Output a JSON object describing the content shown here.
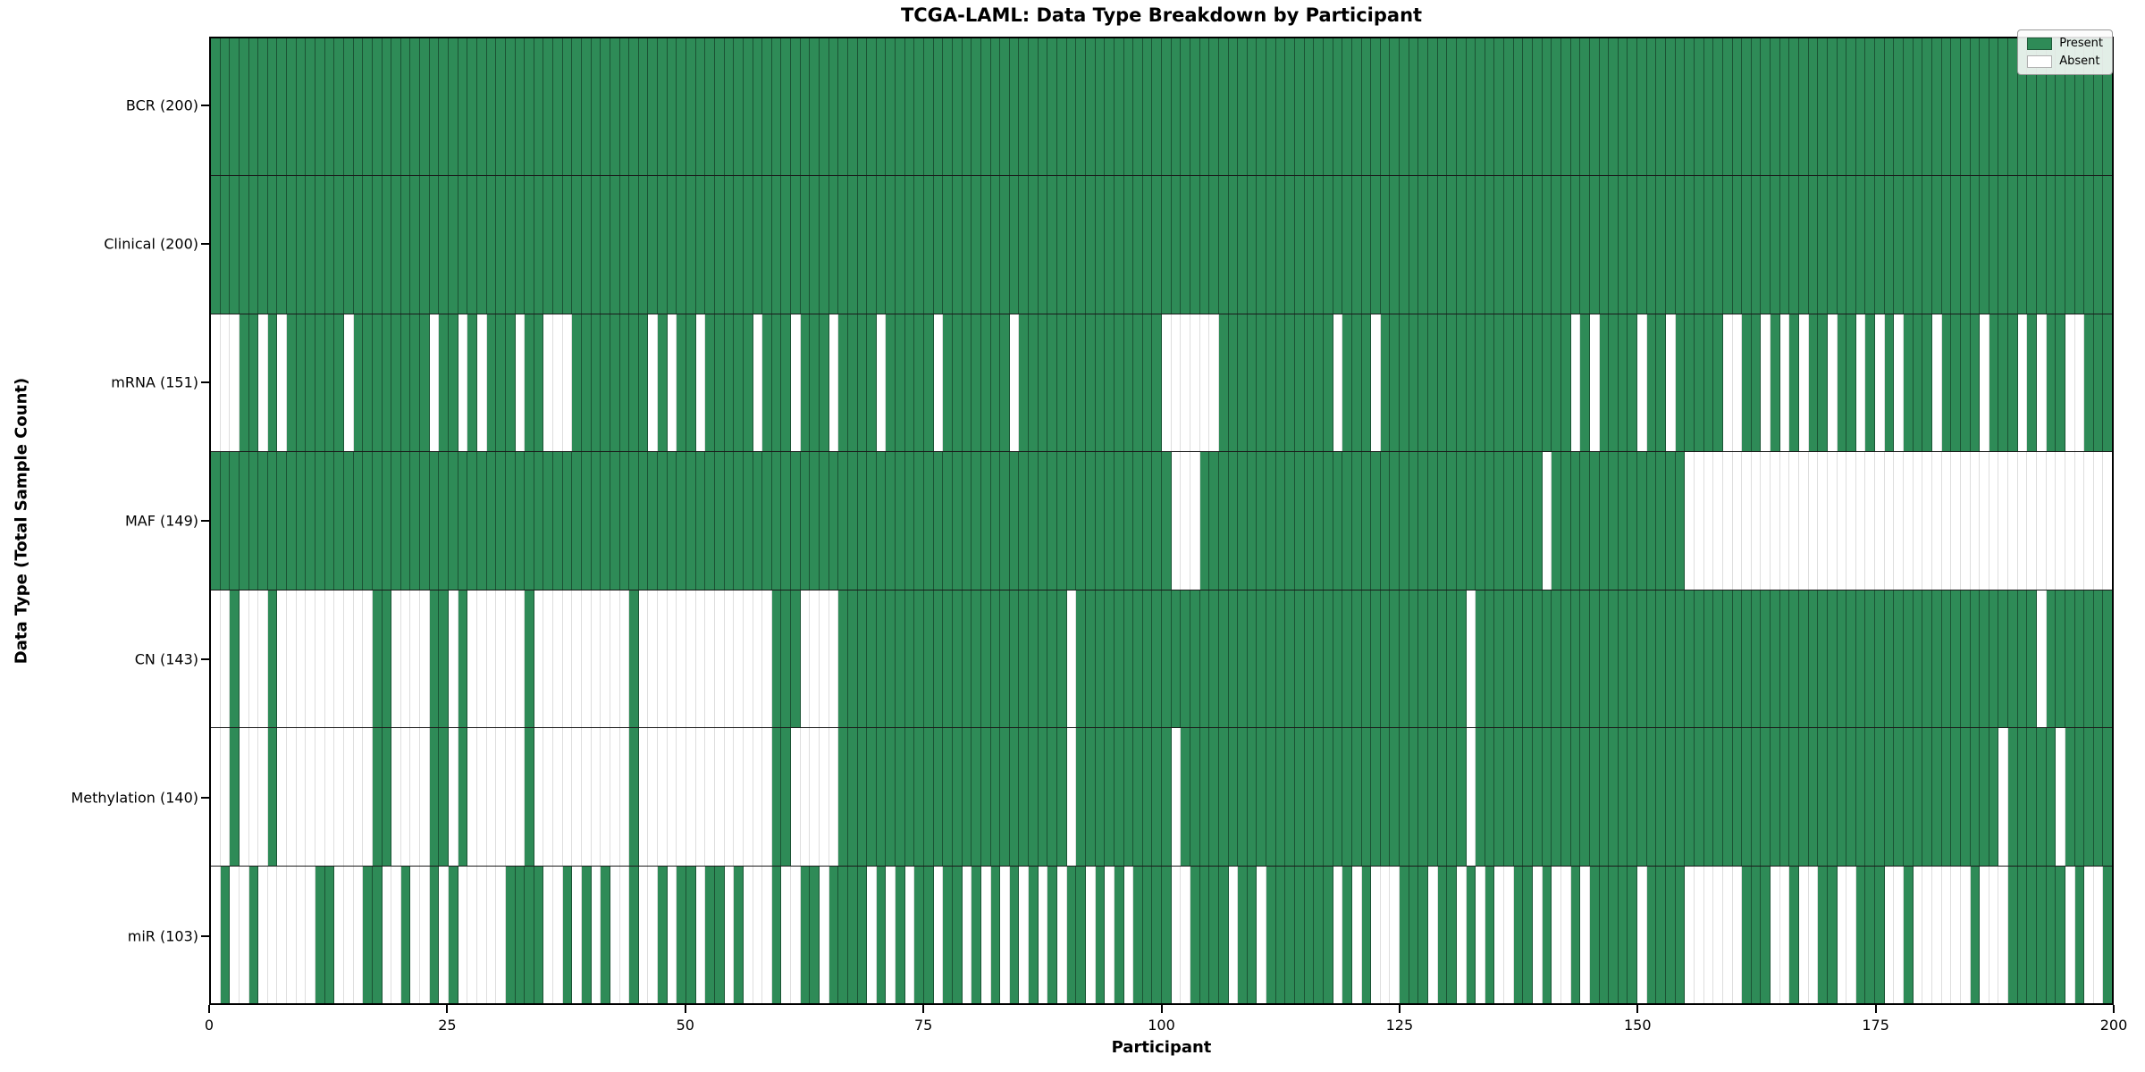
{
  "title": "TCGA-LAML: Data Type Breakdown by Participant",
  "xlabel": "Participant",
  "ylabel": "Data Type (Total Sample Count)",
  "legend": {
    "present_label": "Present",
    "absent_label": "Absent"
  },
  "colors": {
    "present": "#2e8b57",
    "absent": "#ffffff"
  },
  "chart_data": {
    "type": "heatmap",
    "x_axis_label": "Participant",
    "y_axis_label": "Data Type (Total Sample Count)",
    "x_ticks": [
      0,
      25,
      50,
      75,
      100,
      125,
      150,
      175,
      200
    ],
    "n_participants": 200,
    "x_range": [
      0,
      200
    ],
    "grid": false,
    "legend_position": "upper right",
    "value_encoding": {
      "1": "Present",
      "0": "Absent"
    },
    "rows": [
      {
        "label": "BCR (200)",
        "name": "BCR",
        "present_count": 200,
        "presence": "11111111111111111111111111111111111111111111111111111111111111111111111111111111111111111111111111111111111111111111111111111111111111111111111111111111111111111111111111111111111111111111111111111111"
      },
      {
        "label": "Clinical (200)",
        "name": "Clinical",
        "present_count": 200,
        "presence": "11111111111111111111111111111111111111111111111111111111111111111111111111111111111111111111111111111111111111111111111111111111111111111111111111111111111111111111111111111111111111111111111111111111"
      },
      {
        "label": "mRNA (151)",
        "name": "mRNA",
        "present_count": 151,
        "presence": "00011010111111011111111011010111011000111111110101101111101110111011110111110111111101111111111111110000001111111111110111011111111111111111111010111101101111100110101011011010101110111101110101100111 11"
      },
      {
        "label": "MAF (149)",
        "name": "MAF",
        "present_count": 149,
        "presence": "11111111111111111111111111111111111111111111111111111111111111111111111111111111111111111111111111111000111111111111111111111111111111111111011111111111111000000000000000000000000000000000000000000000"
      },
      {
        "label": "CN (143)",
        "name": "CN",
        "present_count": 143,
        "presence": "00100010000000000110000110100000010000000000100000000000000111000011111111111111111111111101111111111111111111111111111111111111111101111111111111111111111111111111111111111111111111111111111101111111 11"
      },
      {
        "label": "Methylation (140)",
        "name": "Methylation",
        "present_count": 140,
        "presence": "00100010000000000110000110100000010000000000100000000000000110000011111111111111111111111101111111111011111111111111111111111111111101111111111111111111111111111111111111111111111111111111011111011111 1"
      },
      {
        "label": "miR (103)",
        "name": "miR",
        "present_count": 103,
        "presence": "01001000000110001100100101000001111001010100100101101101000100110111101010110110101010101011010101111001111011011111110101000111011010100110100101111101111000000111001001100111001000000100011111101001"
      }
    ]
  }
}
